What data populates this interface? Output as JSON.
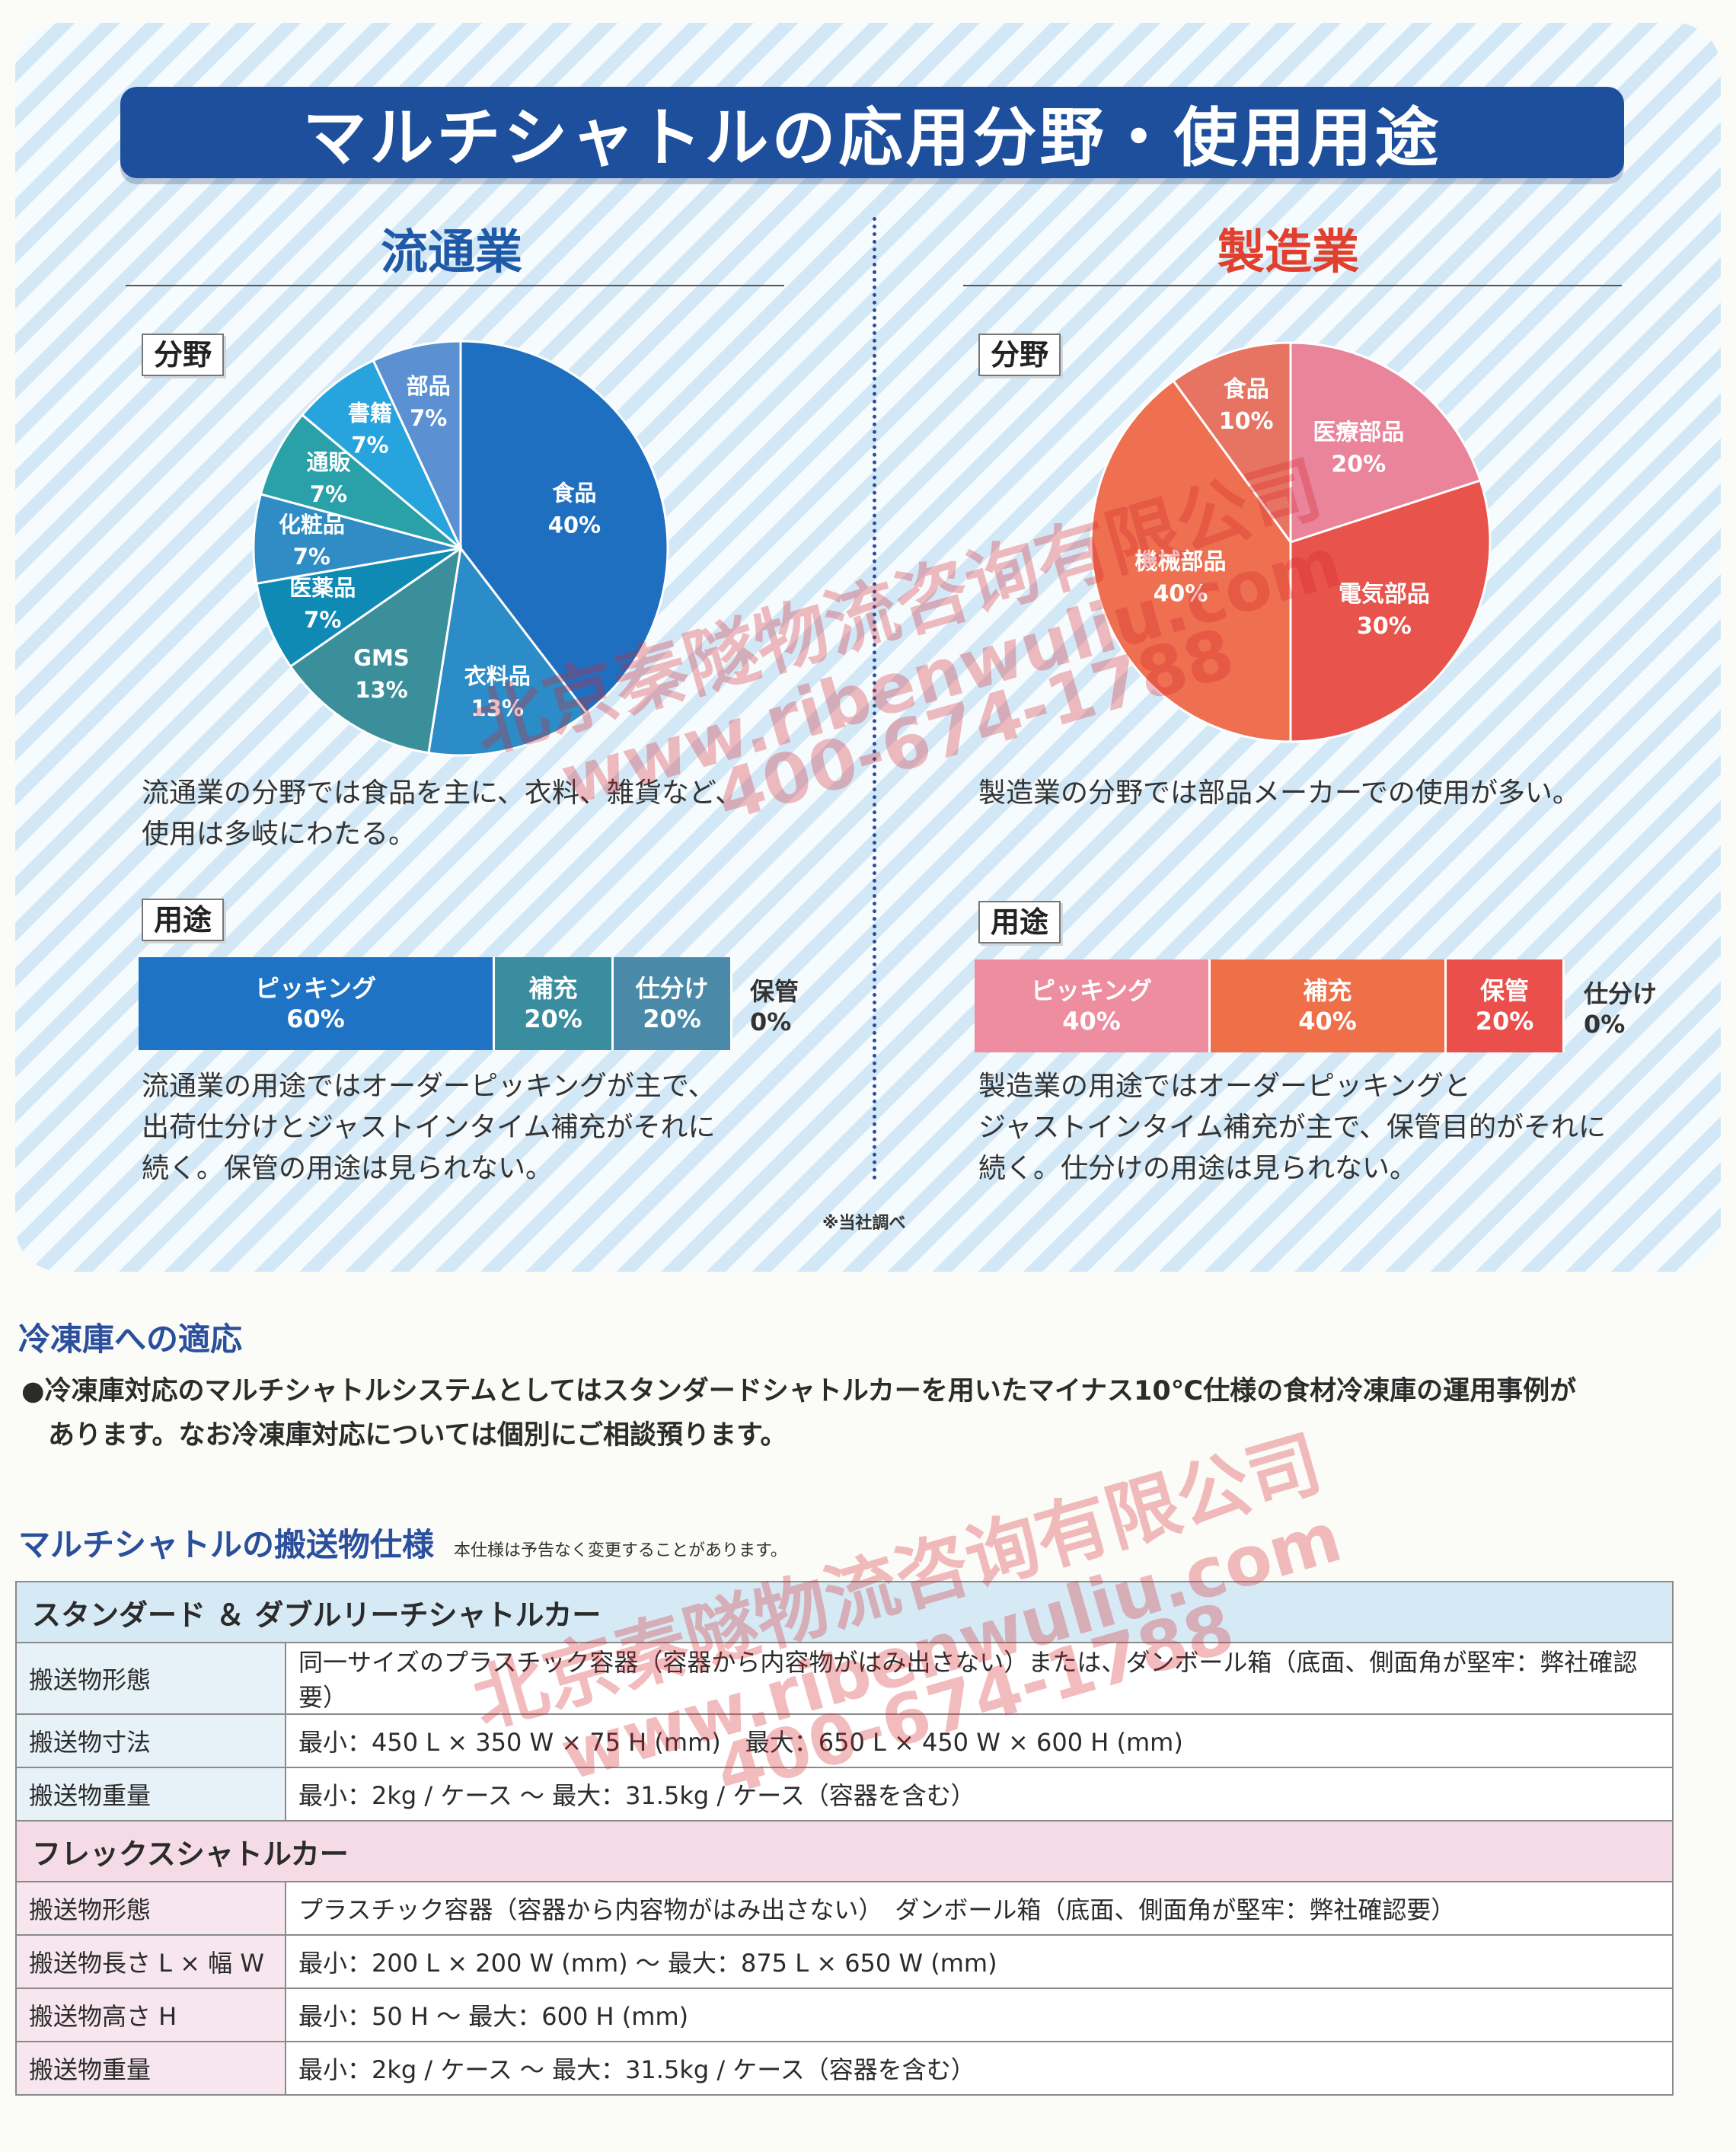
{
  "title": "マルチシャトルの応用分野・使用用途",
  "distribution": {
    "heading": "流通業",
    "field_tag": "分野",
    "pie": [
      {
        "label": "食品",
        "value": 40,
        "value_text": "40%",
        "color": "#1f6fc0"
      },
      {
        "label": "衣料品",
        "value": 13,
        "value_text": "13%",
        "color": "#2b8cc7"
      },
      {
        "label": "GMS",
        "value": 13,
        "value_text": "13%",
        "color": "#3a8f9a"
      },
      {
        "label": "医薬品",
        "value": 7,
        "value_text": "7%",
        "color": "#0f8ab5"
      },
      {
        "label": "化粧品",
        "value": 7,
        "value_text": "7%",
        "color": "#2f8cc4"
      },
      {
        "label": "通販",
        "value": 7,
        "value_text": "7%",
        "color": "#2aa0a8"
      },
      {
        "label": "書籍",
        "value": 7,
        "value_text": "7%",
        "color": "#27a4dd"
      },
      {
        "label": "部品",
        "value": 7,
        "value_text": "7%",
        "color": "#5b90d3"
      }
    ],
    "desc": [
      "流通業の分野では食品を主に、衣料、雑貨など、",
      "使用は多岐にわたる。"
    ],
    "use_tag": "用途",
    "bar": [
      {
        "label": "ピッキング",
        "value": 60,
        "value_text": "60%",
        "color": "#1e73c4"
      },
      {
        "label": "補充",
        "value": 20,
        "value_text": "20%",
        "color": "#3a8d9e"
      },
      {
        "label": "仕分け",
        "value": 20,
        "value_text": "20%",
        "color": "#4a8aa8"
      }
    ],
    "bar_outside": {
      "label": "保管",
      "value_text": "0%"
    },
    "use_desc": [
      "流通業の用途ではオーダーピッキングが主で、",
      "出荷仕分けとジャストインタイム補充がそれに",
      "続く。保管の用途は見られない。"
    ]
  },
  "manufacturing": {
    "heading": "製造業",
    "field_tag": "分野",
    "pie": [
      {
        "label": "医療部品",
        "value": 20,
        "value_text": "20%",
        "color": "#e9849a"
      },
      {
        "label": "電気部品",
        "value": 30,
        "value_text": "30%",
        "color": "#e8534b"
      },
      {
        "label": "機械部品",
        "value": 40,
        "value_text": "40%",
        "color": "#ee7050"
      },
      {
        "label": "食品",
        "value": 10,
        "value_text": "10%",
        "color": "#e77462"
      }
    ],
    "desc": [
      "製造業の分野では部品メーカーでの使用が多い。"
    ],
    "use_tag": "用途",
    "bar": [
      {
        "label": "ピッキング",
        "value": 40,
        "value_text": "40%",
        "color": "#ee8da0"
      },
      {
        "label": "補充",
        "value": 40,
        "value_text": "40%",
        "color": "#ee6f48"
      },
      {
        "label": "保管",
        "value": 20,
        "value_text": "20%",
        "color": "#ea4f4b"
      }
    ],
    "bar_outside": {
      "label": "仕分け",
      "value_text": "0%"
    },
    "use_desc": [
      "製造業の用途ではオーダーピッキングと",
      "ジャストインタイム補充が主で、保管目的がそれに",
      "続く。仕分けの用途は見られない。"
    ]
  },
  "source_note": "※当社調べ",
  "freezer": {
    "heading": "冷凍庫への適応",
    "lines": [
      "●冷凍庫対応のマルチシャトルシステムとしてはスタンダードシャトルカーを用いたマイナス10℃仕様の食材冷凍庫の運用事例が",
      "　あります。なお冷凍庫対応については個別にご相談預ります。"
    ]
  },
  "spec": {
    "heading": "マルチシャトルの搬送物仕様",
    "note": "本仕様は予告なく変更することがあります。",
    "groups": [
      {
        "name": "スタンダード ＆ ダブルリーチシャトルカー",
        "rows": [
          {
            "label": "搬送物形態",
            "value": "同一サイズのプラスチック容器（容器から内容物がはみ出さない）または、ダンボール箱（底面、側面角が堅牢：弊社確認要）"
          },
          {
            "label": "搬送物寸法",
            "value": "最小：450 L × 350 W × 75 H (mm)　最大：650 L × 450 W × 600 H (mm)"
          },
          {
            "label": "搬送物重量",
            "value": "最小：2kg / ケース 〜 最大：31.5kg / ケース（容器を含む）"
          }
        ]
      },
      {
        "name": "フレックスシャトルカー",
        "rows": [
          {
            "label": "搬送物形態",
            "value": "プラスチック容器（容器から内容物がはみ出さない）　ダンボール箱（底面、側面角が堅牢：弊社確認要）"
          },
          {
            "label": "搬送物長さ L × 幅 W",
            "value": "最小：200 L × 200 W (mm) 〜 最大：875 L × 650 W (mm)"
          },
          {
            "label": "搬送物高さ H",
            "value": "最小：50 H 〜 最大：600 H (mm)"
          },
          {
            "label": "搬送物重量",
            "value": "最小：2kg / ケース 〜 最大：31.5kg / ケース（容器を含む）"
          }
        ]
      }
    ]
  },
  "watermark": {
    "company": "北京秦隧物流咨询有限公司",
    "url": "www.ribenwuliu.com",
    "phone": "400-674-1788"
  }
}
